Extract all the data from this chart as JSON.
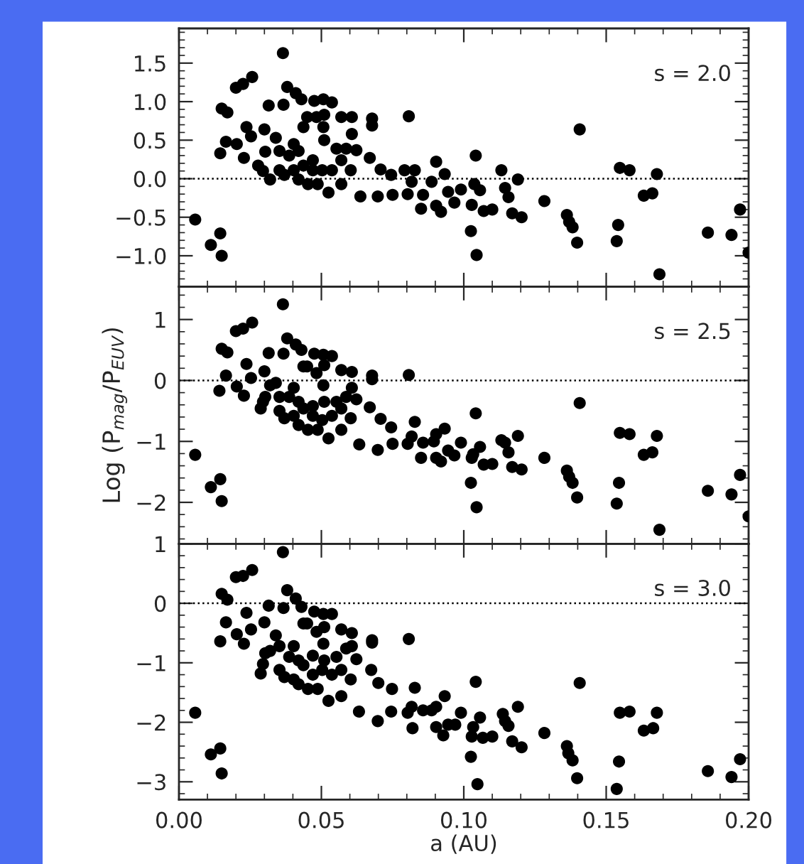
{
  "chart_data": [
    {
      "type": "scatter",
      "marker": "circle",
      "color": "#000000",
      "grid": false,
      "tick_labels": "y",
      "annotations": [
        "s = 2.0"
      ],
      "ref_lines": [
        {
          "axis": "y",
          "value": 0,
          "line_style": "dotted",
          "color": "#000000"
        }
      ],
      "xlim": [
        0,
        0.2
      ],
      "xticks": [
        {
          "value": 0,
          "label": null
        },
        {
          "value": 0.05,
          "label": null
        },
        {
          "value": 0.1,
          "label": null
        },
        {
          "value": 0.15,
          "label": null
        },
        {
          "value": 0.2,
          "label": null
        }
      ],
      "ylim": [
        -1.4,
        1.95
      ],
      "yticks": [
        {
          "value": -1.0,
          "label": "−1.0"
        },
        {
          "value": -0.5,
          "label": "−0.5"
        },
        {
          "value": 0.0,
          "label": "0.0"
        },
        {
          "value": 0.5,
          "label": "0.5"
        },
        {
          "value": 1.0,
          "label": "1.0"
        },
        {
          "value": 1.5,
          "label": "1.5"
        }
      ],
      "x": [
        0.0365,
        0.0057,
        0.0112,
        0.0145,
        0.015,
        0.015,
        0.017,
        0.0145,
        0.0165,
        0.02,
        0.0225,
        0.0257,
        0.0315,
        0.0367,
        0.038,
        0.041,
        0.043,
        0.0475,
        0.0507,
        0.0537,
        0.051,
        0.057,
        0.0607,
        0.0678,
        0.0678,
        0.0807,
        0.0237,
        0.0203,
        0.0228,
        0.0253,
        0.03,
        0.034,
        0.0303,
        0.0278,
        0.0295,
        0.0353,
        0.0387,
        0.0403,
        0.0437,
        0.045,
        0.0483,
        0.0507,
        0.051,
        0.0553,
        0.0587,
        0.0607,
        0.0603,
        0.0623,
        0.057,
        0.037,
        0.042,
        0.0453,
        0.0487,
        0.0525,
        0.057,
        0.0637,
        0.067,
        0.0708,
        0.0698,
        0.0745,
        0.0792,
        0.075,
        0.0803,
        0.0828,
        0.0817,
        0.085,
        0.0857,
        0.0903,
        0.0887,
        0.0903,
        0.092,
        0.0933,
        0.0945,
        0.0967,
        0.099,
        0.1025,
        0.1042,
        0.1037,
        0.1057,
        0.1028,
        0.1045,
        0.107,
        0.11,
        0.1132,
        0.1145,
        0.1157,
        0.117,
        0.119,
        0.1203,
        0.1283,
        0.1362,
        0.137,
        0.1382,
        0.1398,
        0.1407,
        0.1537,
        0.1542,
        0.1548,
        0.1582,
        0.1632,
        0.1662,
        0.1678,
        0.1687,
        0.1857,
        0.194,
        0.197,
        0.2,
        0.047,
        0.0503,
        0.0437,
        0.0403,
        0.0537,
        0.047,
        0.0353,
        0.042,
        0.032
      ],
      "values": [
        1.63,
        -0.53,
        -0.86,
        -0.71,
        -1.0,
        0.91,
        0.86,
        0.33,
        0.48,
        1.18,
        1.23,
        1.32,
        0.95,
        0.96,
        1.19,
        1.11,
        1.03,
        1.01,
        1.03,
        0.99,
        0.83,
        0.8,
        0.8,
        0.78,
        0.69,
        0.81,
        0.67,
        0.45,
        0.27,
        0.55,
        0.64,
        0.53,
        0.35,
        0.17,
        0.1,
        0.11,
        0.3,
        0.45,
        0.67,
        0.8,
        0.8,
        0.67,
        0.5,
        0.39,
        0.39,
        0.58,
        0.11,
        0.37,
        0.24,
        0.05,
        -0.01,
        -0.07,
        -0.07,
        -0.18,
        -0.07,
        -0.23,
        0.27,
        0.12,
        -0.23,
        0.05,
        0.11,
        -0.21,
        -0.2,
        0.11,
        -0.04,
        -0.39,
        -0.21,
        0.22,
        -0.04,
        -0.35,
        -0.43,
        0.06,
        -0.17,
        -0.31,
        -0.14,
        -0.68,
        0.3,
        -0.07,
        -0.15,
        -0.34,
        -0.99,
        -0.42,
        -0.4,
        0.11,
        -0.12,
        -0.24,
        -0.45,
        -0.01,
        -0.5,
        -0.29,
        -0.47,
        -0.56,
        -0.63,
        -0.83,
        0.64,
        -0.81,
        -0.6,
        0.14,
        0.11,
        -0.22,
        -0.19,
        0.06,
        -1.24,
        -0.7,
        -0.73,
        -0.4,
        -0.96,
        0.24,
        0.11,
        0.17,
        0.11,
        0.11,
        0.11,
        0.36,
        0.36,
        -0.01
      ]
    },
    {
      "type": "scatter",
      "marker": "circle",
      "color": "#000000",
      "grid": false,
      "tick_labels": "y",
      "annotations": [
        "s = 2.5"
      ],
      "ylabel": "Log (P$_{mag}$/P$_{EUV}$)",
      "ref_lines": [
        {
          "axis": "y",
          "value": 0,
          "line_style": "dotted",
          "color": "#000000"
        }
      ],
      "xlim": [
        0,
        0.2
      ],
      "xticks": [
        {
          "value": 0,
          "label": null
        },
        {
          "value": 0.05,
          "label": null
        },
        {
          "value": 0.1,
          "label": null
        },
        {
          "value": 0.15,
          "label": null
        },
        {
          "value": 0.2,
          "label": null
        }
      ],
      "ylim": [
        -2.68,
        1.54
      ],
      "yticks": [
        {
          "value": -2,
          "label": "−2"
        },
        {
          "value": -1,
          "label": "−1"
        },
        0,
        1
      ],
      "x": [
        0.0365,
        0.0057,
        0.0112,
        0.0145,
        0.015,
        0.015,
        0.017,
        0.0142,
        0.0165,
        0.02,
        0.0225,
        0.0257,
        0.0315,
        0.0367,
        0.038,
        0.041,
        0.043,
        0.0475,
        0.0507,
        0.0537,
        0.051,
        0.057,
        0.0607,
        0.0678,
        0.0678,
        0.0807,
        0.0237,
        0.0203,
        0.0228,
        0.0253,
        0.03,
        0.034,
        0.0303,
        0.0287,
        0.0295,
        0.0353,
        0.0387,
        0.0403,
        0.0437,
        0.045,
        0.0483,
        0.0507,
        0.051,
        0.0553,
        0.0587,
        0.0607,
        0.0603,
        0.0623,
        0.057,
        0.037,
        0.042,
        0.0453,
        0.0487,
        0.0525,
        0.057,
        0.0633,
        0.067,
        0.0708,
        0.0698,
        0.0745,
        0.075,
        0.0803,
        0.0828,
        0.0817,
        0.085,
        0.0857,
        0.0903,
        0.0895,
        0.0903,
        0.092,
        0.0933,
        0.0945,
        0.0967,
        0.099,
        0.1025,
        0.1042,
        0.1033,
        0.1057,
        0.1028,
        0.1045,
        0.107,
        0.11,
        0.1132,
        0.1145,
        0.1157,
        0.117,
        0.119,
        0.1203,
        0.1283,
        0.1362,
        0.137,
        0.1382,
        0.1398,
        0.1407,
        0.1537,
        0.1545,
        0.1548,
        0.1582,
        0.1632,
        0.1662,
        0.1678,
        0.1687,
        0.1857,
        0.194,
        0.197,
        0.2,
        0.047,
        0.0503,
        0.0437,
        0.0403,
        0.0537,
        0.047,
        0.0353,
        0.042,
        0.032
      ],
      "values": [
        1.25,
        -1.22,
        -1.75,
        -1.62,
        -1.98,
        0.52,
        0.46,
        -0.17,
        0.08,
        0.81,
        0.85,
        0.95,
        0.45,
        0.44,
        0.69,
        0.59,
        0.5,
        0.44,
        0.42,
        0.4,
        0.25,
        0.17,
        0.14,
        0.08,
        0.02,
        0.09,
        0.27,
        -0.1,
        -0.25,
        0.04,
        0.15,
        -0.04,
        -0.27,
        -0.46,
        -0.35,
        -0.5,
        -0.27,
        -0.12,
        0.23,
        0.23,
        0.12,
        -0.08,
        -0.35,
        -0.35,
        -0.27,
        -0.12,
        -0.62,
        -0.31,
        -0.46,
        -0.62,
        -0.73,
        -0.81,
        -0.81,
        -0.95,
        -0.81,
        -1.05,
        -0.44,
        -0.63,
        -1.14,
        -0.77,
        -1.04,
        -1.04,
        -0.68,
        -0.92,
        -1.27,
        -1.02,
        -0.88,
        -1.0,
        -1.27,
        -1.33,
        -0.79,
        -1.15,
        -1.23,
        -1.02,
        -1.68,
        -0.54,
        -1.21,
        -1.09,
        -1.27,
        -2.08,
        -1.38,
        -1.37,
        -0.98,
        -1.02,
        -1.18,
        -1.42,
        -0.91,
        -1.46,
        -1.27,
        -1.48,
        -1.58,
        -1.68,
        -1.92,
        -0.37,
        -2.02,
        -1.68,
        -0.86,
        -0.88,
        -1.22,
        -1.18,
        -0.91,
        -2.45,
        -1.81,
        -1.87,
        -1.55,
        -2.23,
        -0.58,
        -0.65,
        -0.46,
        -0.58,
        -0.58,
        -0.42,
        -0.27,
        -0.35,
        -0.08
      ]
    },
    {
      "type": "scatter",
      "marker": "circle",
      "color": "#000000",
      "grid": false,
      "annotations": [
        "s = 3.0"
      ],
      "xlabel": "a (AU)",
      "ref_lines": [
        {
          "axis": "y",
          "value": 0,
          "line_style": "dotted",
          "color": "#000000"
        }
      ],
      "xlim": [
        0,
        0.2
      ],
      "xticks": [
        {
          "value": 0,
          "label": "0.00"
        },
        {
          "value": 0.05,
          "label": "0.05"
        },
        {
          "value": 0.1,
          "label": "0.10"
        },
        {
          "value": 0.15,
          "label": "0.15"
        },
        {
          "value": 0.2,
          "label": "0.20"
        }
      ],
      "ylim": [
        -3.3,
        1.0
      ],
      "yticks": [
        {
          "value": -3,
          "label": "−3"
        },
        {
          "value": -2,
          "label": "−2"
        },
        {
          "value": -1,
          "label": "−1"
        },
        0,
        1
      ],
      "x": [
        0.0365,
        0.0057,
        0.0112,
        0.0145,
        0.015,
        0.015,
        0.017,
        0.0145,
        0.0165,
        0.02,
        0.0225,
        0.0257,
        0.0315,
        0.0367,
        0.038,
        0.041,
        0.043,
        0.0475,
        0.0507,
        0.0537,
        0.051,
        0.057,
        0.0607,
        0.0678,
        0.0678,
        0.0807,
        0.0237,
        0.0203,
        0.0228,
        0.0253,
        0.03,
        0.034,
        0.0303,
        0.0287,
        0.0295,
        0.0353,
        0.0387,
        0.0403,
        0.0437,
        0.045,
        0.0483,
        0.0507,
        0.051,
        0.0553,
        0.0587,
        0.0607,
        0.0603,
        0.0623,
        0.057,
        0.037,
        0.042,
        0.0453,
        0.0487,
        0.0525,
        0.057,
        0.0632,
        0.0675,
        0.07,
        0.0698,
        0.0748,
        0.0745,
        0.0803,
        0.0828,
        0.0817,
        0.082,
        0.0857,
        0.0903,
        0.0887,
        0.0903,
        0.0928,
        0.0933,
        0.0945,
        0.097,
        0.099,
        0.1025,
        0.1042,
        0.1033,
        0.1057,
        0.1028,
        0.1048,
        0.1067,
        0.11,
        0.1137,
        0.1145,
        0.1157,
        0.117,
        0.119,
        0.1203,
        0.1283,
        0.1362,
        0.1367,
        0.1382,
        0.1398,
        0.1407,
        0.1537,
        0.1545,
        0.1548,
        0.1582,
        0.1632,
        0.1665,
        0.1678,
        0.1857,
        0.194,
        0.197,
        0.047,
        0.0503,
        0.0437,
        0.0403,
        0.0537,
        0.047,
        0.0353,
        0.042,
        0.032
      ],
      "values": [
        0.86,
        -1.84,
        -2.54,
        -2.44,
        -2.86,
        0.16,
        0.06,
        -0.64,
        -0.32,
        0.44,
        0.46,
        0.56,
        -0.04,
        -0.08,
        0.22,
        0.08,
        -0.06,
        -0.14,
        -0.18,
        -0.18,
        -0.4,
        -0.44,
        -0.5,
        -0.62,
        -0.66,
        -0.6,
        -0.16,
        -0.52,
        -0.68,
        -0.44,
        -0.32,
        -0.54,
        -0.84,
        -1.18,
        -1.02,
        -1.12,
        -0.9,
        -0.72,
        -0.34,
        -0.34,
        -0.48,
        -0.68,
        -0.96,
        -0.9,
        -0.76,
        -0.72,
        -1.28,
        -0.94,
        -1.12,
        -1.24,
        -1.36,
        -1.44,
        -1.44,
        -1.64,
        -1.56,
        -1.82,
        -1.12,
        -1.34,
        -1.98,
        -1.44,
        -1.82,
        -1.84,
        -1.42,
        -1.74,
        -2.1,
        -1.8,
        -1.74,
        -1.8,
        -2.08,
        -2.22,
        -1.56,
        -2.04,
        -2.04,
        -1.84,
        -2.58,
        -1.32,
        -2.08,
        -1.92,
        -2.24,
        -3.04,
        -2.26,
        -2.24,
        -1.86,
        -1.98,
        -2.06,
        -2.32,
        -1.74,
        -2.42,
        -2.18,
        -2.4,
        -2.52,
        -2.64,
        -2.94,
        -1.34,
        -3.12,
        -2.66,
        -1.84,
        -1.82,
        -2.14,
        -2.1,
        -1.84,
        -2.82,
        -2.92,
        -2.62,
        -1.2,
        -1.12,
        -1.04,
        -1.28,
        -1.2,
        -0.88,
        -0.72,
        -0.96,
        -0.8
      ]
    }
  ]
}
